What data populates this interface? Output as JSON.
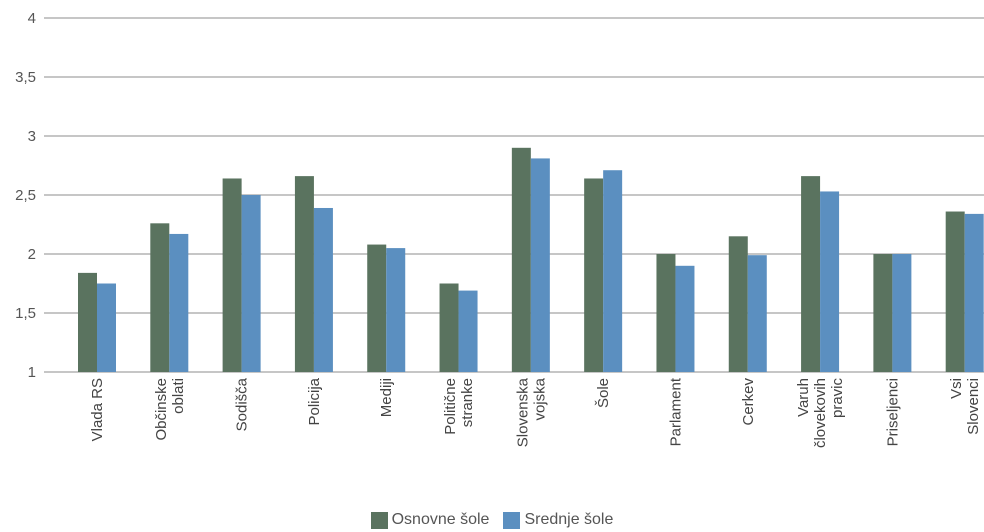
{
  "chart_data": {
    "type": "bar",
    "categories": [
      [
        "Vlada RS"
      ],
      [
        "Občinske",
        "oblati"
      ],
      [
        "Sodišča"
      ],
      [
        "Policija"
      ],
      [
        "Mediji"
      ],
      [
        "Politične",
        "stranke"
      ],
      [
        "Slovenska",
        "vojska"
      ],
      [
        "Šole"
      ],
      [
        "Parlament"
      ],
      [
        "Cerkev"
      ],
      [
        "Varuh",
        "človekovih",
        "pravic"
      ],
      [
        "Priseljenci"
      ],
      [
        "Vsi",
        "Slovenci"
      ]
    ],
    "series": [
      {
        "name": "Osnovne šole",
        "color": "#5a735f",
        "values": [
          1.84,
          2.26,
          2.64,
          2.66,
          2.08,
          1.75,
          2.9,
          2.64,
          2.0,
          2.15,
          2.66,
          2.0,
          2.36
        ]
      },
      {
        "name": "Srednje šole",
        "color": "#5b8fc0",
        "values": [
          1.75,
          2.17,
          2.5,
          2.39,
          2.05,
          1.69,
          2.81,
          2.71,
          1.9,
          1.99,
          2.53,
          2.0,
          2.34
        ]
      }
    ],
    "yticks": [
      "1",
      "1,5",
      "2",
      "2,5",
      "3",
      "3,5",
      "4"
    ],
    "ylim": [
      1,
      4
    ],
    "grid": true,
    "legend_position": "bottom-center"
  }
}
